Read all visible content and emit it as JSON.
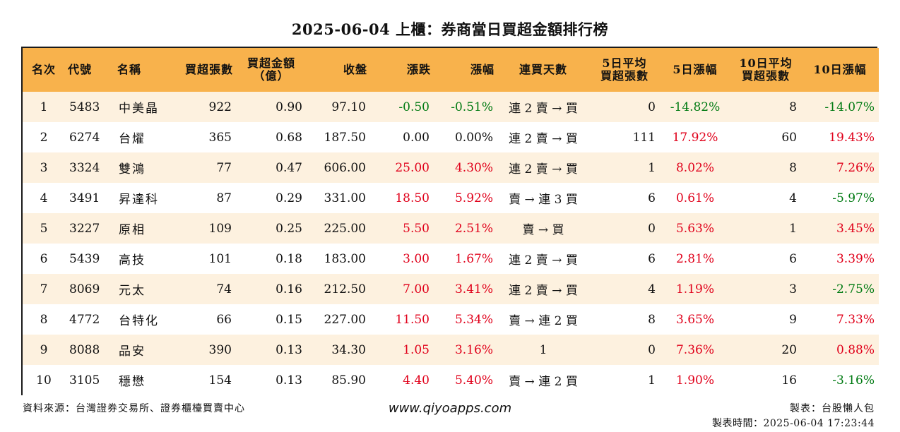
{
  "title": "2025-06-04 上櫃：券商當日買超金額排行榜",
  "headers": {
    "rank": "名次",
    "code": "代號",
    "name": "名稱",
    "buy_shares": "買超張數",
    "buy_amount_1": "買超金額",
    "buy_amount_2": "（億）",
    "close": "收盤",
    "change": "漲跌",
    "change_pct": "漲幅",
    "streak": "連買天數",
    "avg5_1": "5日平均",
    "avg5_2": "買超張數",
    "pct5": "5日漲幅",
    "avg10_1": "10日平均",
    "avg10_2": "買超張數",
    "pct10": "10日漲幅"
  },
  "rows": [
    {
      "rank": "1",
      "code": "5483",
      "name": "中美晶",
      "buy_shares": "922",
      "buy_amount": "0.90",
      "close": "97.10",
      "change": "-0.50",
      "change_pct": "-0.51%",
      "streak": "連 2 賣 → 買",
      "avg5": "0",
      "pct5": "-14.82%",
      "avg10": "8",
      "pct10": "-14.07%"
    },
    {
      "rank": "2",
      "code": "6274",
      "name": "台燿",
      "buy_shares": "365",
      "buy_amount": "0.68",
      "close": "187.50",
      "change": "0.00",
      "change_pct": "0.00%",
      "streak": "連 2 賣 → 買",
      "avg5": "111",
      "pct5": "17.92%",
      "avg10": "60",
      "pct10": "19.43%"
    },
    {
      "rank": "3",
      "code": "3324",
      "name": "雙鴻",
      "buy_shares": "77",
      "buy_amount": "0.47",
      "close": "606.00",
      "change": "25.00",
      "change_pct": "4.30%",
      "streak": "連 2 賣 → 買",
      "avg5": "1",
      "pct5": "8.02%",
      "avg10": "8",
      "pct10": "7.26%"
    },
    {
      "rank": "4",
      "code": "3491",
      "name": "昇達科",
      "buy_shares": "87",
      "buy_amount": "0.29",
      "close": "331.00",
      "change": "18.50",
      "change_pct": "5.92%",
      "streak": "賣 → 連 3 買",
      "avg5": "6",
      "pct5": "0.61%",
      "avg10": "4",
      "pct10": "-5.97%"
    },
    {
      "rank": "5",
      "code": "3227",
      "name": "原相",
      "buy_shares": "109",
      "buy_amount": "0.25",
      "close": "225.00",
      "change": "5.50",
      "change_pct": "2.51%",
      "streak": "賣 → 買",
      "avg5": "0",
      "pct5": "5.63%",
      "avg10": "1",
      "pct10": "3.45%"
    },
    {
      "rank": "6",
      "code": "5439",
      "name": "高技",
      "buy_shares": "101",
      "buy_amount": "0.18",
      "close": "183.00",
      "change": "3.00",
      "change_pct": "1.67%",
      "streak": "連 2 賣 → 買",
      "avg5": "6",
      "pct5": "2.81%",
      "avg10": "6",
      "pct10": "3.39%"
    },
    {
      "rank": "7",
      "code": "8069",
      "name": "元太",
      "buy_shares": "74",
      "buy_amount": "0.16",
      "close": "212.50",
      "change": "7.00",
      "change_pct": "3.41%",
      "streak": "連 2 賣 → 買",
      "avg5": "4",
      "pct5": "1.19%",
      "avg10": "3",
      "pct10": "-2.75%"
    },
    {
      "rank": "8",
      "code": "4772",
      "name": "台特化",
      "buy_shares": "66",
      "buy_amount": "0.15",
      "close": "227.00",
      "change": "11.50",
      "change_pct": "5.34%",
      "streak": "賣 → 連 2 買",
      "avg5": "8",
      "pct5": "3.65%",
      "avg10": "9",
      "pct10": "7.33%"
    },
    {
      "rank": "9",
      "code": "8088",
      "name": "品安",
      "buy_shares": "390",
      "buy_amount": "0.13",
      "close": "34.30",
      "change": "1.05",
      "change_pct": "3.16%",
      "streak": "1",
      "avg5": "0",
      "pct5": "7.36%",
      "avg10": "20",
      "pct10": "0.88%"
    },
    {
      "rank": "10",
      "code": "3105",
      "name": "穩懋",
      "buy_shares": "154",
      "buy_amount": "0.13",
      "close": "85.90",
      "change": "4.40",
      "change_pct": "5.40%",
      "streak": "賣 → 連 2 買",
      "avg5": "1",
      "pct5": "1.90%",
      "avg10": "16",
      "pct10": "-3.16%"
    }
  ],
  "footer": {
    "source": "資料來源：台灣證券交易所、證券櫃檯買賣中心",
    "website": "www.qiyoapps.com",
    "author": "製表：台股懶人包",
    "created": "製表時間：2025-06-04 17:23:44"
  },
  "colors": {
    "header_bg": "#f8b24c",
    "odd_row_bg": "#fdf1df",
    "up": "#e0001a",
    "down": "#007a12"
  }
}
